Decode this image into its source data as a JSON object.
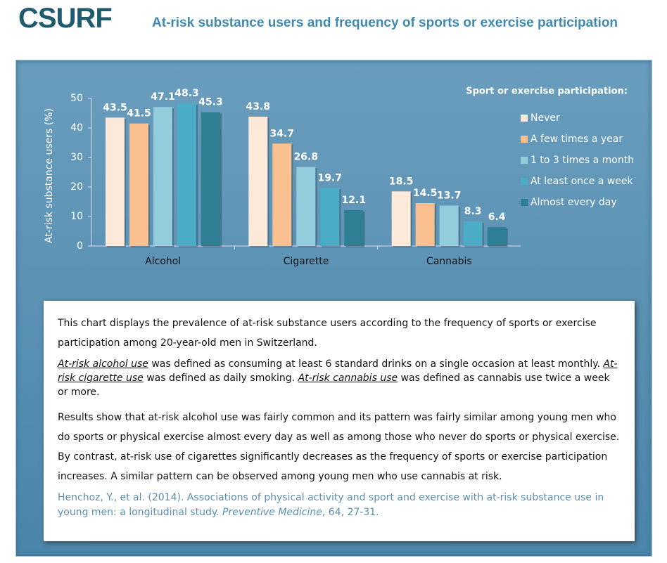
{
  "header": {
    "logo": "CSURF",
    "title": "At-risk substance users and frequency of sports or exercise participation"
  },
  "chart_data": {
    "type": "bar",
    "y_label": "At-risk substance users  (%)",
    "legend_title": "Sport or exercise participation:",
    "categories": [
      "Alcohol",
      "Cigarette",
      "Cannabis"
    ],
    "series": [
      {
        "name": "Never",
        "color": "#fde9d9",
        "values": [
          43.5,
          43.8,
          18.5
        ]
      },
      {
        "name": "A few times a year",
        "color": "#fac090",
        "values": [
          41.5,
          34.7,
          14.5
        ]
      },
      {
        "name": "1 to 3 times a month",
        "color": "#93cddd",
        "values": [
          47.1,
          26.8,
          13.7
        ]
      },
      {
        "name": "At least once a week",
        "color": "#4bacc6",
        "values": [
          48.3,
          19.7,
          8.3
        ]
      },
      {
        "name": "Almost every day",
        "color": "#2e7f94",
        "values": [
          45.3,
          12.1,
          6.4
        ]
      }
    ],
    "ylim": [
      0,
      50
    ],
    "yticks": [
      0,
      10,
      20,
      30,
      40,
      50
    ]
  },
  "description": {
    "p1": "This chart displays the prevalence of at-risk substance users according to the frequency of sports or exercise participation among 20-year-old men in Switzerland.",
    "p2": [
      "At-risk alcohol use",
      " was defined as consuming at least 6 standard drinks on a single occasion at least monthly. ",
      "At-risk cigarette use",
      " was defined as daily smoking. ",
      "At-risk cannabis use",
      " was defined as cannabis use twice a week or more."
    ],
    "p3": "Results show that at-risk alcohol use was fairly common and its pattern was fairly similar among young men who do sports or physical exercise almost every day as well as among those who never do sports or physical exercise. By contrast, at-risk use of cigarettes significantly decreases as the frequency of sports or exercise participation increases. A similar pattern can be observed among young men who use cannabis at risk.",
    "citation": [
      "Henchoz, Y., et al. (2014). Associations of physical activity and sport and exercise with at-risk substance use in young men: a longitudinal  study. ",
      "Preventive Medicine",
      ", 64, 27-31."
    ]
  }
}
